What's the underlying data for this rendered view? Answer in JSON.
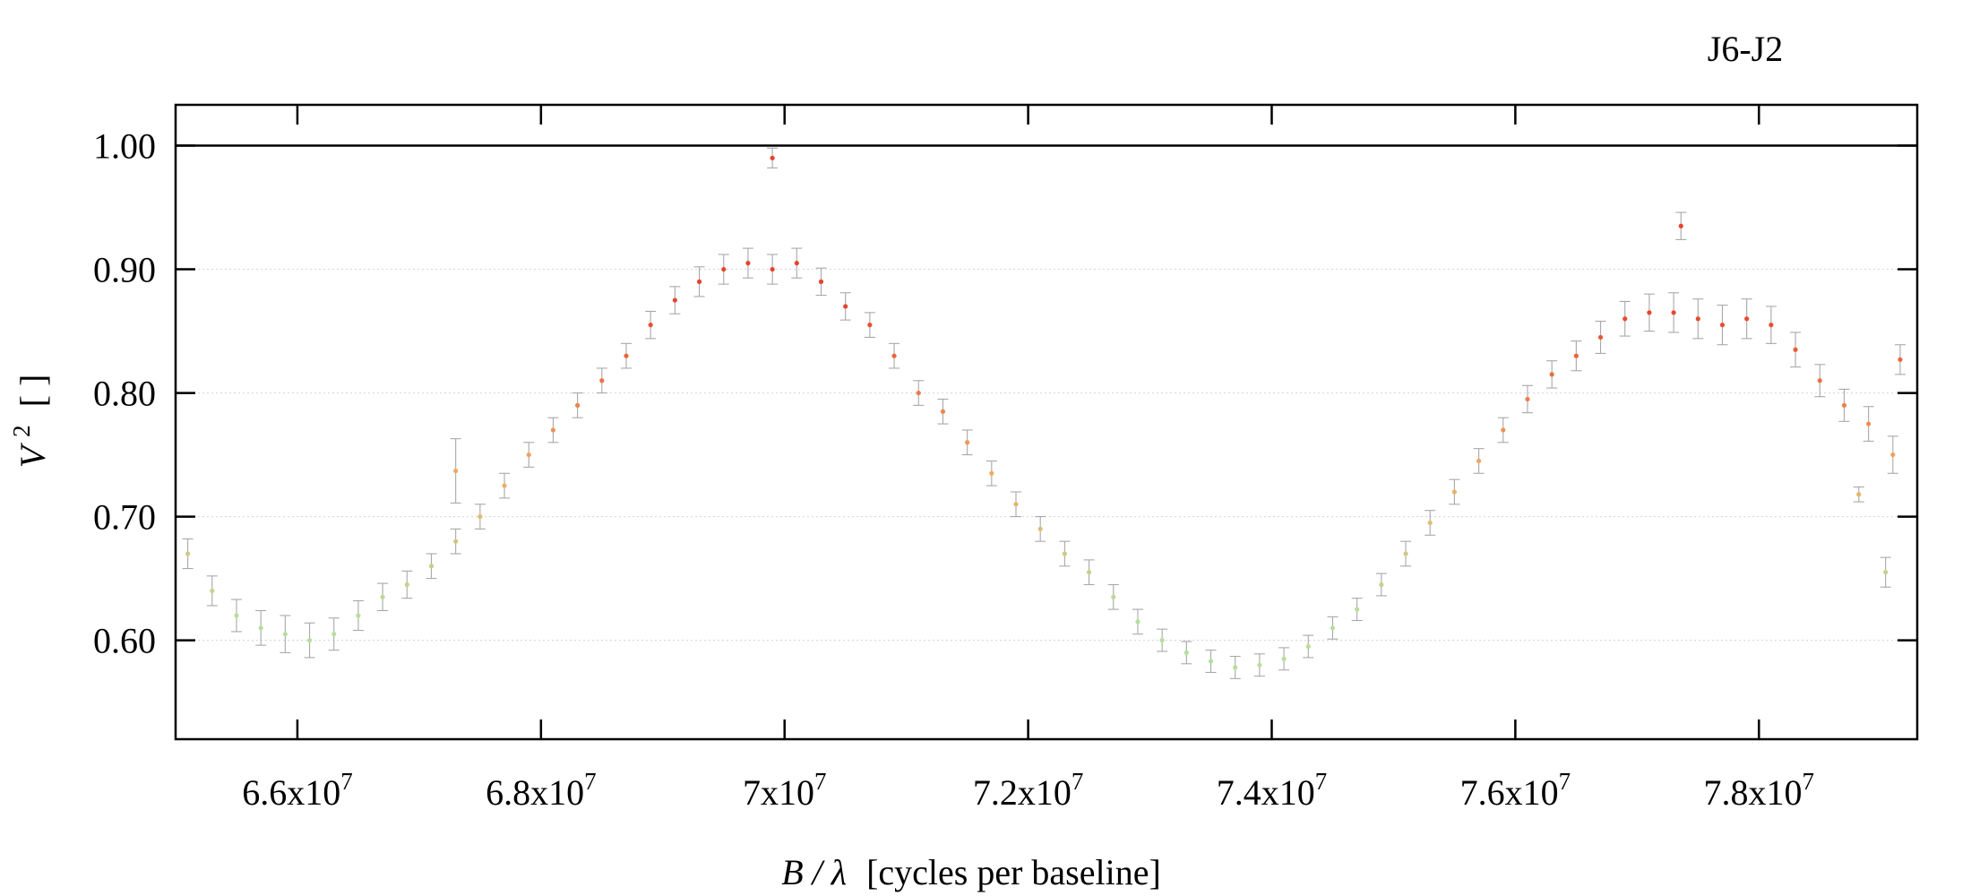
{
  "chart_data": {
    "type": "scatter",
    "title": "J6-J2",
    "xlabel_var": "B / λ",
    "xlabel_unit": "[cycles per baseline]",
    "ylabel_var": "V",
    "ylabel_exp": "2",
    "ylabel_unit": "[ ]",
    "xlim": [
      65000000,
      79300000
    ],
    "ylim": [
      0.52,
      1.033
    ],
    "x_ticks": [
      {
        "value": 66000000,
        "mantissa": "6.6x10",
        "exp": "7"
      },
      {
        "value": 68000000,
        "mantissa": "6.8x10",
        "exp": "7"
      },
      {
        "value": 70000000,
        "mantissa": "7x10",
        "exp": "7"
      },
      {
        "value": 72000000,
        "mantissa": "7.2x10",
        "exp": "7"
      },
      {
        "value": 74000000,
        "mantissa": "7.4x10",
        "exp": "7"
      },
      {
        "value": 76000000,
        "mantissa": "7.6x10",
        "exp": "7"
      },
      {
        "value": 78000000,
        "mantissa": "7.8x10",
        "exp": "7"
      }
    ],
    "y_ticks": [
      {
        "value": 0.6,
        "label": "0.60"
      },
      {
        "value": 0.7,
        "label": "0.70"
      },
      {
        "value": 0.8,
        "label": "0.80"
      },
      {
        "value": 0.9,
        "label": "0.90"
      },
      {
        "value": 1.0,
        "label": "1.00"
      }
    ],
    "reference_line": 1.0,
    "grid": "horizontal dotted",
    "color_scale": {
      "low": "#b5e09a",
      "mid": "#f5a860",
      "high": "#e6432b"
    },
    "error_bar_color": "#a8a8a8",
    "series": [
      {
        "x": [
          65100000,
          65300000,
          65500000,
          65700000,
          65900000,
          66100000,
          66300000,
          66500000,
          66700000,
          66900000,
          67100000,
          67300000,
          67500000,
          67700000,
          67900000,
          68100000,
          68300000,
          68500000,
          68700000,
          68900000,
          69100000,
          69300000,
          69500000,
          69700000,
          69900000,
          70100000,
          70300000,
          70500000,
          70700000,
          70900000,
          71100000,
          71300000,
          71500000,
          71700000,
          71900000,
          72100000,
          72300000,
          72500000,
          72700000,
          72900000,
          73100000,
          73300000,
          73500000,
          73700000,
          73900000,
          74100000,
          74300000,
          74500000,
          74700000,
          74900000,
          75100000,
          75300000,
          75500000,
          75700000,
          75900000,
          76100000,
          76300000,
          76500000,
          76700000,
          76900000,
          77100000,
          77300000,
          77500000,
          77700000,
          77900000,
          78100000,
          78300000,
          78500000,
          78700000,
          78900000,
          79100000
        ],
        "y": [
          0.67,
          0.64,
          0.62,
          0.61,
          0.605,
          0.6,
          0.605,
          0.62,
          0.635,
          0.645,
          0.66,
          0.68,
          0.7,
          0.725,
          0.75,
          0.77,
          0.79,
          0.81,
          0.83,
          0.855,
          0.875,
          0.89,
          0.9,
          0.905,
          0.9,
          0.905,
          0.89,
          0.87,
          0.855,
          0.83,
          0.8,
          0.785,
          0.76,
          0.735,
          0.71,
          0.69,
          0.67,
          0.655,
          0.635,
          0.615,
          0.6,
          0.59,
          0.583,
          0.578,
          0.58,
          0.585,
          0.595,
          0.61,
          0.625,
          0.645,
          0.67,
          0.695,
          0.72,
          0.745,
          0.77,
          0.795,
          0.815,
          0.83,
          0.845,
          0.86,
          0.865,
          0.865,
          0.86,
          0.855,
          0.86,
          0.855,
          0.835,
          0.81,
          0.79,
          0.775,
          0.75
        ],
        "yerr": [
          0.012,
          0.012,
          0.013,
          0.014,
          0.015,
          0.014,
          0.013,
          0.012,
          0.011,
          0.011,
          0.01,
          0.01,
          0.01,
          0.01,
          0.01,
          0.01,
          0.01,
          0.01,
          0.01,
          0.011,
          0.011,
          0.012,
          0.012,
          0.012,
          0.012,
          0.012,
          0.011,
          0.011,
          0.01,
          0.01,
          0.01,
          0.01,
          0.01,
          0.01,
          0.01,
          0.01,
          0.01,
          0.01,
          0.01,
          0.01,
          0.009,
          0.009,
          0.009,
          0.009,
          0.009,
          0.009,
          0.009,
          0.009,
          0.009,
          0.009,
          0.01,
          0.01,
          0.01,
          0.01,
          0.01,
          0.011,
          0.011,
          0.012,
          0.013,
          0.014,
          0.015,
          0.016,
          0.016,
          0.016,
          0.016,
          0.015,
          0.014,
          0.013,
          0.013,
          0.014,
          0.015
        ]
      }
    ],
    "outliers": [
      {
        "x": 69900000,
        "y": 0.99,
        "yerr": 0.008
      },
      {
        "x": 67300000,
        "y": 0.737,
        "yerr": 0.026
      },
      {
        "x": 77360000,
        "y": 0.935,
        "yerr": 0.011
      },
      {
        "x": 78820000,
        "y": 0.718,
        "yerr": 0.006
      },
      {
        "x": 79160000,
        "y": 0.827,
        "yerr": 0.012
      },
      {
        "x": 79040000,
        "y": 0.655,
        "yerr": 0.012
      }
    ]
  }
}
